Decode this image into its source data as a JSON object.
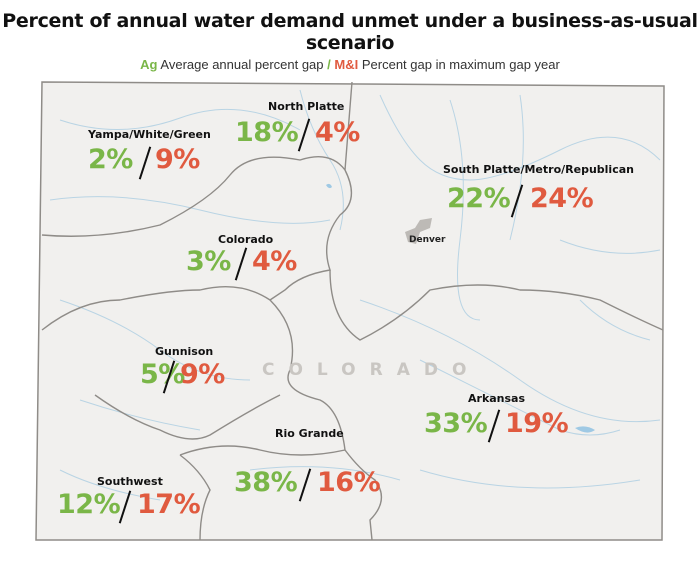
{
  "title": "Percent of annual water demand unmet under a business-as-usual scenario",
  "legend": {
    "ag_label": "Ag",
    "ag_text": "Average annual percent gap",
    "separator": "/",
    "mi_label": "M&I",
    "mi_text": "Percent gap in maximum gap year"
  },
  "colors": {
    "ag": "#7ab648",
    "mi": "#e05a3f",
    "map_fill": "#f1f0ee",
    "border": "#8f8c88",
    "rivers": "#b9d4e4"
  },
  "state_label": "COLORADO",
  "city_label": "Denver",
  "basins": [
    {
      "name": "North Platte",
      "ag": "18%",
      "mi": "4%"
    },
    {
      "name": "Yampa/White/Green",
      "ag": "2%",
      "mi": "9%"
    },
    {
      "name": "South Platte/Metro/Republican",
      "ag": "22%",
      "mi": "24%"
    },
    {
      "name": "Colorado",
      "ag": "3%",
      "mi": "4%"
    },
    {
      "name": "Gunnison",
      "ag": "5%",
      "mi": "9%"
    },
    {
      "name": "Arkansas",
      "ag": "33%",
      "mi": "19%"
    },
    {
      "name": "Rio Grande",
      "ag": "38%",
      "mi": "16%"
    },
    {
      "name": "Southwest",
      "ag": "12%",
      "mi": "17%"
    }
  ]
}
